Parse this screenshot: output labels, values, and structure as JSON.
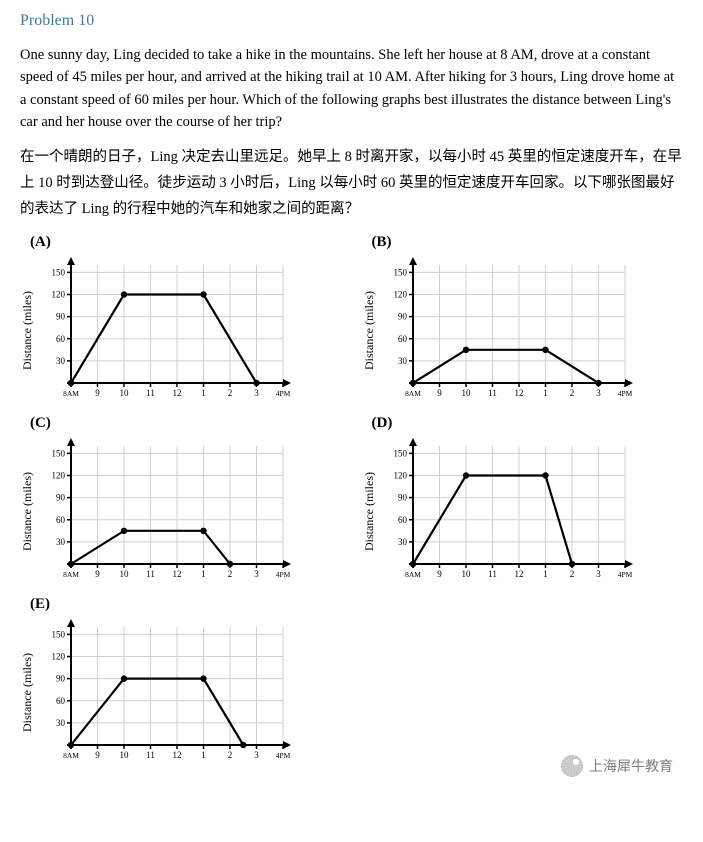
{
  "title": "Problem 10",
  "paragraph_en": "One sunny day, Ling decided to take a hike in the mountains. She left her house at 8 AM, drove at a constant speed of 45 miles per hour, and arrived at the hiking trail at 10 AM. After hiking for 3 hours, Ling drove home at a constant speed of 60 miles per hour. Which of the following graphs best illustrates the distance between Ling's car and her house over the course of her trip?",
  "paragraph_cn": "在一个晴朗的日子，Ling 决定去山里远足。她早上 8 时离开家，以每小时 45 英里的恒定速度开车，在早上 10 时到达登山径。徒步运动 3 小时后，Ling 以每小时 60 英里的恒定速度开车回家。以下哪张图最好的表达了 Ling 的行程中她的汽车和她家之间的距离？",
  "ylabel": "Distance (miles)",
  "yticks": [
    30,
    60,
    90,
    120,
    150
  ],
  "xticks": [
    "8AM",
    "9",
    "10",
    "11",
    "12",
    "1",
    "2",
    "3",
    "4PM"
  ],
  "chart_style": {
    "grid_color": "#cfcfcf",
    "axis_color": "#000000",
    "line_color": "#000000",
    "dot_color": "#000000",
    "background": "#ffffff",
    "line_width": 2.2,
    "dot_radius": 3.2,
    "arrow_size": 6,
    "tick_font_size": 8,
    "ylabel_font_size": 12
  },
  "choices": [
    {
      "label": "(A)",
      "points": [
        {
          "x": 0,
          "y": 0
        },
        {
          "x": 2,
          "y": 120
        },
        {
          "x": 5,
          "y": 120
        },
        {
          "x": 7,
          "y": 0
        }
      ]
    },
    {
      "label": "(B)",
      "points": [
        {
          "x": 0,
          "y": 0
        },
        {
          "x": 2,
          "y": 45
        },
        {
          "x": 5,
          "y": 45
        },
        {
          "x": 7,
          "y": 0
        }
      ]
    },
    {
      "label": "(C)",
      "points": [
        {
          "x": 0,
          "y": 0
        },
        {
          "x": 2,
          "y": 45
        },
        {
          "x": 5,
          "y": 45
        },
        {
          "x": 6,
          "y": 0
        }
      ]
    },
    {
      "label": "(D)",
      "points": [
        {
          "x": 0,
          "y": 0
        },
        {
          "x": 2,
          "y": 120
        },
        {
          "x": 5,
          "y": 120
        },
        {
          "x": 6,
          "y": 0
        }
      ]
    },
    {
      "label": "(E)",
      "points": [
        {
          "x": 0,
          "y": 0
        },
        {
          "x": 2,
          "y": 90
        },
        {
          "x": 5,
          "y": 90
        },
        {
          "x": 6.5,
          "y": 0
        }
      ]
    }
  ],
  "watermark": "上海犀牛教育"
}
